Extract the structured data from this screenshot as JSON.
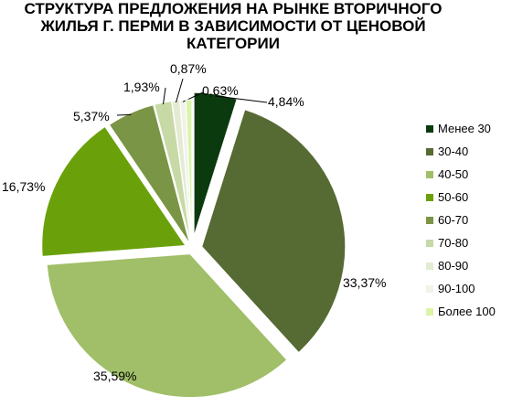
{
  "chart_data": {
    "type": "pie",
    "title_lines": [
      "СТРУКТУРА ПРЕДЛОЖЕНИЯ НА РЫНКЕ ВТОРИЧНОГО",
      "ЖИЛЬЯ Г. ПЕРМИ В ЗАВИСИМОСТИ ОТ ЦЕНОВОЙ",
      "КАТЕГОРИИ"
    ],
    "legend_position": "right",
    "slices": [
      {
        "label": "Менее 30",
        "value": 4.84,
        "value_label": "4,84%",
        "color": "#0c3a0f"
      },
      {
        "label": "30-40",
        "value": 33.37,
        "value_label": "33,37%",
        "color": "#566b33"
      },
      {
        "label": "40-50",
        "value": 35.59,
        "value_label": "35,59%",
        "color": "#a0bf68"
      },
      {
        "label": "50-60",
        "value": 16.73,
        "value_label": "16,73%",
        "color": "#6aa10a"
      },
      {
        "label": "60-70",
        "value": 5.37,
        "value_label": "5,37%",
        "color": "#7a9545"
      },
      {
        "label": "70-80",
        "value": 1.93,
        "value_label": "1,93%",
        "color": "#c7d9a5"
      },
      {
        "label": "80-90",
        "value": 0.87,
        "value_label": "0,87%",
        "color": "#e3ecd2"
      },
      {
        "label": "90-100",
        "value": 0.63,
        "value_label": "0,63%",
        "color": "#f2f2ea"
      },
      {
        "label": "Более 100",
        "value": 0.67,
        "value_label": "",
        "color": "#d8f5a8"
      }
    ]
  }
}
